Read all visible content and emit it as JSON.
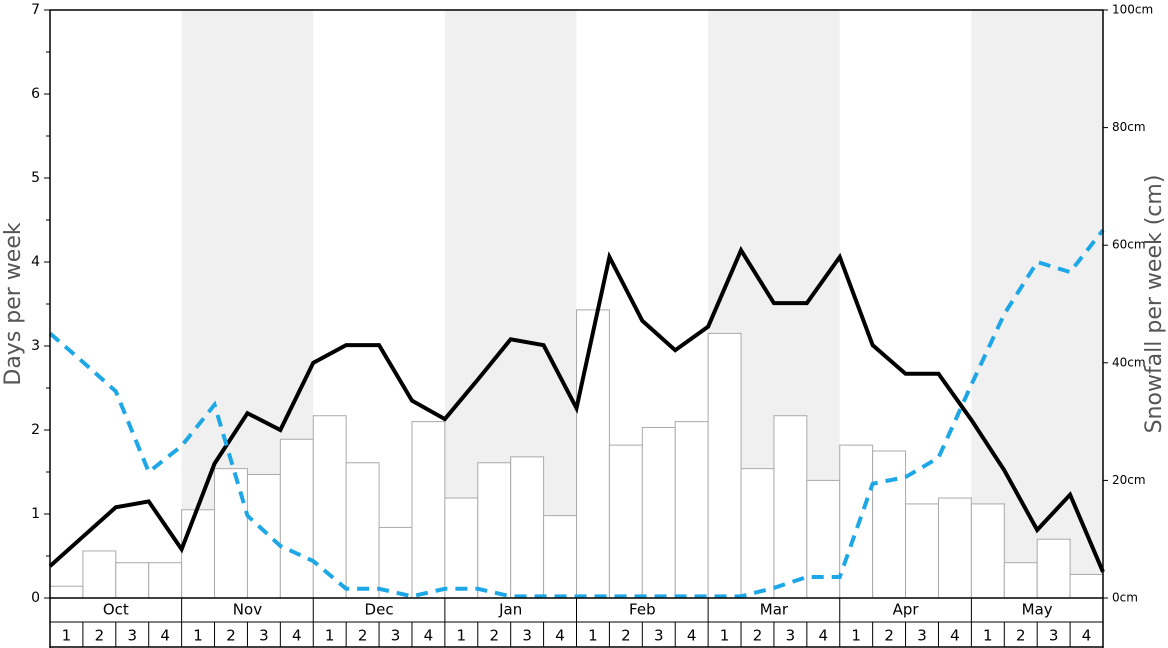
{
  "chart_data": {
    "type": "bar",
    "ylabel": "Days per week",
    "y2label": "Snowfall per week (cm)",
    "months": [
      "Oct",
      "Nov",
      "Dec",
      "Jan",
      "Feb",
      "Mar",
      "Apr",
      "May"
    ],
    "weeks": [
      1,
      2,
      3,
      4
    ],
    "ylim": [
      0,
      7
    ],
    "yticks": [
      0,
      1,
      2,
      3,
      4,
      5,
      6,
      7
    ],
    "yminorticks": [
      0.5,
      1.5,
      2.5,
      3.5,
      4.5,
      5.5,
      6.5
    ],
    "y2lim": [
      0,
      100
    ],
    "y2ticks": [
      {
        "value": 0,
        "label": "0cm"
      },
      {
        "value": 20,
        "label": "20cm"
      },
      {
        "value": 40,
        "label": "40cm"
      },
      {
        "value": 60,
        "label": "60cm"
      },
      {
        "value": 80,
        "label": "80cm"
      },
      {
        "value": 100,
        "label": "100cm"
      }
    ],
    "shade_color": "#f0f0f0",
    "series": [
      {
        "type": "bar",
        "axis": "y2",
        "color": "#ffffff",
        "edge_color": "#aaaaaa",
        "values": [
          2,
          8,
          6,
          6,
          15,
          22,
          21,
          27,
          31,
          23,
          12,
          30,
          17,
          23,
          24,
          14,
          49,
          26,
          29,
          30,
          45,
          22,
          31,
          20,
          26,
          25,
          16,
          17,
          16,
          6,
          10,
          4
        ]
      },
      {
        "type": "line",
        "color": "#000000",
        "dashed": false,
        "values": [
          0.38,
          0.73,
          1.08,
          1.15,
          0.58,
          1.6,
          2.2,
          2.0,
          2.8,
          3.01,
          3.01,
          2.35,
          2.13,
          2.6,
          3.08,
          3.01,
          2.26,
          4.06,
          3.3,
          2.95,
          3.23,
          4.14,
          3.51,
          3.51,
          4.06,
          3.01,
          2.67,
          2.67,
          2.12,
          1.52,
          0.81,
          1.23,
          0.31
        ]
      },
      {
        "type": "line",
        "color": "#1ea7e6",
        "dashed": true,
        "values": [
          3.15,
          2.81,
          2.46,
          1.5,
          1.81,
          2.3,
          0.98,
          0.62,
          0.44,
          0.11,
          0.11,
          0.02,
          0.11,
          0.11,
          0.02,
          0.02,
          0.02,
          0.02,
          0.02,
          0.02,
          0.02,
          0.02,
          0.12,
          0.25,
          0.25,
          1.36,
          1.44,
          1.67,
          2.54,
          3.38,
          4.0,
          3.88,
          4.38
        ]
      }
    ]
  }
}
